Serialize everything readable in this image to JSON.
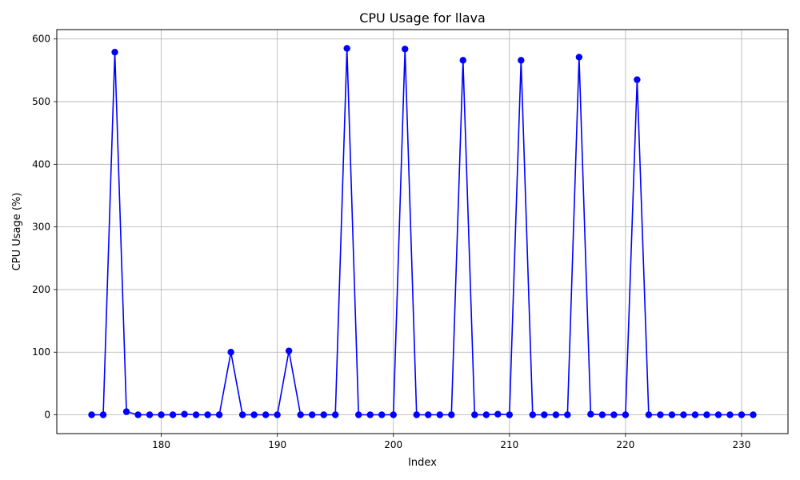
{
  "chart_data": {
    "type": "line",
    "title": "CPU Usage for llava",
    "xlabel": "Index",
    "ylabel": "CPU Usage (%)",
    "xlim": [
      171,
      234
    ],
    "ylim": [
      -30,
      615
    ],
    "x_ticks": [
      180,
      190,
      200,
      210,
      220,
      230
    ],
    "y_ticks": [
      0,
      100,
      200,
      300,
      400,
      500,
      600
    ],
    "grid": true,
    "line_color": "#0000ff",
    "marker": "circle",
    "series": [
      {
        "x": [
          174,
          175,
          176,
          177,
          178,
          179,
          180,
          181,
          182,
          183,
          184,
          185,
          186,
          187,
          188,
          189,
          190,
          191,
          192,
          193,
          194,
          195,
          196,
          197,
          198,
          199,
          200,
          201,
          202,
          203,
          204,
          205,
          206,
          207,
          208,
          209,
          210,
          211,
          212,
          213,
          214,
          215,
          216,
          217,
          218,
          219,
          220,
          221,
          222,
          223,
          224,
          225,
          226,
          227,
          228,
          229,
          230,
          231
        ],
        "values": [
          0,
          0,
          579,
          5,
          0,
          0,
          0,
          0,
          1,
          0,
          0,
          0,
          100,
          0,
          0,
          0,
          0,
          102,
          0,
          0,
          0,
          0,
          585,
          0,
          0,
          0,
          0,
          584,
          0,
          0,
          0,
          0,
          566,
          0,
          0,
          1,
          0,
          566,
          0,
          0,
          0,
          0,
          571,
          1,
          0,
          0,
          0,
          535,
          0,
          0,
          0,
          0,
          0,
          0,
          0,
          0,
          0,
          0
        ]
      }
    ]
  }
}
